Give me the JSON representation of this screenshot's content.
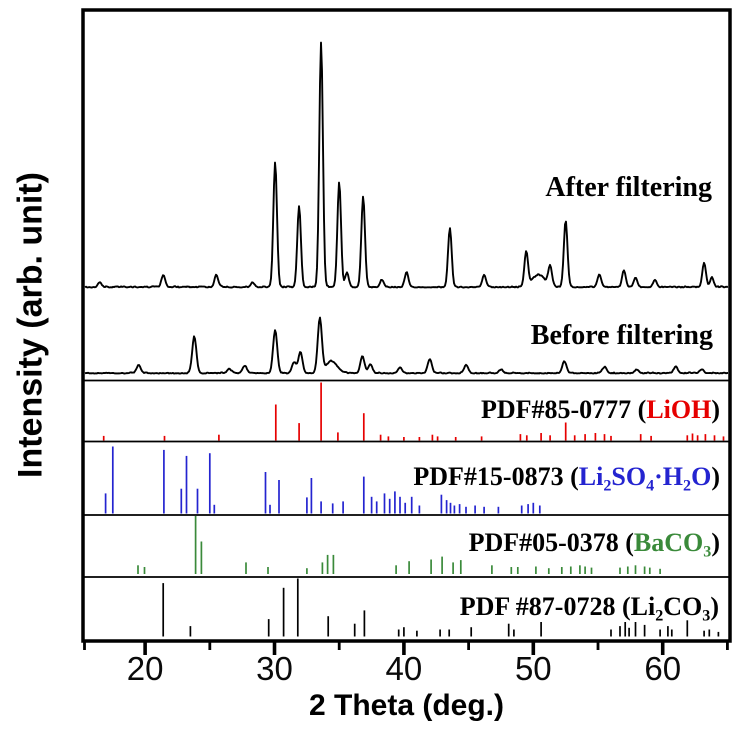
{
  "accent_colors": {
    "red": "#e60000",
    "blue": "#2424d0",
    "green": "#3a8a3a",
    "black": "#000000"
  },
  "chart_data": {
    "type": "line",
    "description": "Multi-panel powder XRD figure: two measured diffraction traces (after/before filtering) stacked above four reference stick patterns (LiOH, Li2SO4·H2O, BaCO3, Li2CO3). Peaks listed as [two_theta_deg, relative_intensity, optional_width_deg].",
    "xlabel": "2 Theta (deg.)",
    "ylabel": "Intensity (arb. unit)",
    "x_range": [
      15.2,
      65.2
    ],
    "x_major_ticks": [
      20,
      30,
      40,
      50,
      60
    ],
    "x_minor_ticks": [
      15,
      25,
      35,
      45,
      55,
      65
    ],
    "grid": false,
    "legend_position": "in-panel right-aligned labels",
    "panels": [
      {
        "id": "after",
        "kind": "trace",
        "color": "#000000",
        "label_parts": [
          {
            "t": "After filtering",
            "color": "#000000"
          }
        ],
        "peaks": [
          [
            16.5,
            0.02
          ],
          [
            21.4,
            0.05
          ],
          [
            25.5,
            0.05
          ],
          [
            28.3,
            0.02
          ],
          [
            30.05,
            0.51
          ],
          [
            31.9,
            0.33
          ],
          [
            33.6,
            1.0
          ],
          [
            35.0,
            0.43
          ],
          [
            35.6,
            0.06
          ],
          [
            36.85,
            0.37
          ],
          [
            38.3,
            0.03
          ],
          [
            40.2,
            0.06
          ],
          [
            43.55,
            0.24
          ],
          [
            46.2,
            0.05
          ],
          [
            49.45,
            0.14
          ],
          [
            50.4,
            0.05,
            0.5
          ],
          [
            51.3,
            0.08
          ],
          [
            52.5,
            0.27
          ],
          [
            55.1,
            0.05
          ],
          [
            57.0,
            0.07
          ],
          [
            57.9,
            0.04
          ],
          [
            59.4,
            0.03
          ],
          [
            63.2,
            0.1
          ],
          [
            63.8,
            0.04
          ]
        ]
      },
      {
        "id": "before",
        "kind": "trace",
        "color": "#000000",
        "label_parts": [
          {
            "t": "Before filtering",
            "color": "#000000"
          }
        ],
        "peaks": [
          [
            19.5,
            0.15
          ],
          [
            23.8,
            0.68
          ],
          [
            26.5,
            0.08
          ],
          [
            27.7,
            0.14
          ],
          [
            30.05,
            0.8
          ],
          [
            31.5,
            0.2
          ],
          [
            32.0,
            0.4
          ],
          [
            33.5,
            1.0
          ],
          [
            34.4,
            0.22,
            0.45
          ],
          [
            36.8,
            0.3
          ],
          [
            37.4,
            0.16
          ],
          [
            39.7,
            0.11
          ],
          [
            42.0,
            0.26
          ],
          [
            44.8,
            0.14
          ],
          [
            47.5,
            0.07
          ],
          [
            52.4,
            0.22
          ],
          [
            55.5,
            0.11
          ],
          [
            58.0,
            0.07
          ],
          [
            61.0,
            0.12
          ],
          [
            63.0,
            0.07
          ]
        ]
      },
      {
        "id": "lioh",
        "kind": "sticks",
        "color": "#e60000",
        "label_parts": [
          {
            "t": "PDF#85-0777 (",
            "color": "#000000"
          },
          {
            "t": "LiOH",
            "color": "#e60000"
          },
          {
            "t": ")",
            "color": "#000000"
          }
        ],
        "peaks": [
          [
            16.8,
            0.08
          ],
          [
            21.5,
            0.08
          ],
          [
            25.7,
            0.1
          ],
          [
            30.1,
            0.62
          ],
          [
            31.9,
            0.3
          ],
          [
            33.6,
            1.0
          ],
          [
            34.9,
            0.14
          ],
          [
            36.9,
            0.47
          ],
          [
            38.2,
            0.1
          ],
          [
            38.8,
            0.07
          ],
          [
            40.0,
            0.06
          ],
          [
            41.2,
            0.06
          ],
          [
            42.2,
            0.1
          ],
          [
            42.6,
            0.07
          ],
          [
            44.0,
            0.06
          ],
          [
            46.0,
            0.07
          ],
          [
            49.0,
            0.11
          ],
          [
            49.5,
            0.09
          ],
          [
            50.6,
            0.13
          ],
          [
            51.3,
            0.09
          ],
          [
            52.5,
            0.31
          ],
          [
            53.2,
            0.09
          ],
          [
            54.0,
            0.11
          ],
          [
            54.8,
            0.13
          ],
          [
            55.5,
            0.11
          ],
          [
            56.0,
            0.08
          ],
          [
            58.3,
            0.11
          ],
          [
            59.1,
            0.08
          ],
          [
            61.9,
            0.09
          ],
          [
            62.3,
            0.12
          ],
          [
            62.7,
            0.09
          ],
          [
            63.3,
            0.11
          ],
          [
            64.0,
            0.09
          ],
          [
            64.7,
            0.07
          ]
        ]
      },
      {
        "id": "li2so4",
        "kind": "sticks",
        "color": "#2424d0",
        "label_parts": [
          {
            "t": "PDF#15-0873 (",
            "color": "#000000"
          },
          {
            "t": "Li",
            "color": "#2424d0"
          },
          {
            "t": "2",
            "color": "#2424d0",
            "sub": true
          },
          {
            "t": "SO",
            "color": "#2424d0"
          },
          {
            "t": "4",
            "color": "#2424d0",
            "sub": true
          },
          {
            "t": "·H",
            "color": "#2424d0"
          },
          {
            "t": "2",
            "color": "#2424d0",
            "sub": true
          },
          {
            "t": "O",
            "color": "#2424d0"
          },
          {
            "t": ")",
            "color": "#000000"
          }
        ],
        "peaks": [
          [
            16.95,
            0.3
          ],
          [
            17.5,
            1.0
          ],
          [
            21.45,
            0.95
          ],
          [
            22.8,
            0.37
          ],
          [
            23.2,
            0.86
          ],
          [
            24.05,
            0.37
          ],
          [
            25.0,
            0.9
          ],
          [
            25.35,
            0.13
          ],
          [
            29.3,
            0.62
          ],
          [
            29.65,
            0.13
          ],
          [
            30.35,
            0.5
          ],
          [
            32.5,
            0.24
          ],
          [
            32.85,
            0.53
          ],
          [
            33.6,
            0.18
          ],
          [
            34.5,
            0.15
          ],
          [
            35.3,
            0.18
          ],
          [
            36.9,
            0.55
          ],
          [
            37.5,
            0.25
          ],
          [
            37.9,
            0.18
          ],
          [
            38.5,
            0.3
          ],
          [
            38.9,
            0.22
          ],
          [
            39.3,
            0.33
          ],
          [
            39.7,
            0.25
          ],
          [
            40.1,
            0.16
          ],
          [
            40.6,
            0.25
          ],
          [
            41.2,
            0.12
          ],
          [
            42.9,
            0.28
          ],
          [
            43.3,
            0.2
          ],
          [
            43.6,
            0.16
          ],
          [
            43.9,
            0.12
          ],
          [
            44.3,
            0.14
          ],
          [
            44.8,
            0.1
          ],
          [
            45.5,
            0.12
          ],
          [
            46.2,
            0.1
          ],
          [
            47.3,
            0.1
          ],
          [
            49.1,
            0.12
          ],
          [
            49.6,
            0.14
          ],
          [
            50.0,
            0.16
          ],
          [
            50.5,
            0.12
          ]
        ]
      },
      {
        "id": "baco3",
        "kind": "sticks",
        "color": "#3a8a3a",
        "label_parts": [
          {
            "t": "PDF#05-0378 (",
            "color": "#000000"
          },
          {
            "t": "BaCO",
            "color": "#3a8a3a"
          },
          {
            "t": "3",
            "color": "#3a8a3a",
            "sub": true
          },
          {
            "t": ")",
            "color": "#000000"
          }
        ],
        "peaks": [
          [
            19.45,
            0.15
          ],
          [
            19.95,
            0.12
          ],
          [
            23.9,
            1.0
          ],
          [
            24.35,
            0.56
          ],
          [
            27.8,
            0.2
          ],
          [
            29.5,
            0.12
          ],
          [
            32.5,
            0.1
          ],
          [
            33.7,
            0.2
          ],
          [
            34.1,
            0.33
          ],
          [
            34.55,
            0.33
          ],
          [
            39.4,
            0.15
          ],
          [
            40.4,
            0.22
          ],
          [
            42.1,
            0.25
          ],
          [
            42.95,
            0.3
          ],
          [
            43.8,
            0.2
          ],
          [
            44.4,
            0.24
          ],
          [
            46.8,
            0.15
          ],
          [
            48.3,
            0.12
          ],
          [
            48.8,
            0.12
          ],
          [
            50.2,
            0.13
          ],
          [
            51.2,
            0.1
          ],
          [
            52.2,
            0.12
          ],
          [
            52.9,
            0.13
          ],
          [
            53.6,
            0.15
          ],
          [
            54.0,
            0.13
          ],
          [
            54.5,
            0.11
          ],
          [
            56.7,
            0.11
          ],
          [
            57.3,
            0.13
          ],
          [
            57.9,
            0.15
          ],
          [
            58.6,
            0.13
          ],
          [
            59.0,
            0.11
          ],
          [
            59.8,
            0.09
          ]
        ]
      },
      {
        "id": "li2co3",
        "kind": "sticks",
        "color": "#000000",
        "label_parts": [
          {
            "t": "PDF #87-0728 (",
            "color": "#000000"
          },
          {
            "t": "Li",
            "color": "#000000"
          },
          {
            "t": "2",
            "color": "#000000",
            "sub": true
          },
          {
            "t": "CO",
            "color": "#000000"
          },
          {
            "t": "3",
            "color": "#000000",
            "sub": true
          },
          {
            "t": ")",
            "color": "#000000"
          }
        ],
        "peaks": [
          [
            21.4,
            0.92
          ],
          [
            23.5,
            0.18
          ],
          [
            29.55,
            0.3
          ],
          [
            30.7,
            0.84
          ],
          [
            31.8,
            1.0
          ],
          [
            34.15,
            0.35
          ],
          [
            36.2,
            0.22
          ],
          [
            36.95,
            0.45
          ],
          [
            39.6,
            0.12
          ],
          [
            40.0,
            0.16
          ],
          [
            41.0,
            0.1
          ],
          [
            42.8,
            0.12
          ],
          [
            43.5,
            0.12
          ],
          [
            45.2,
            0.16
          ],
          [
            48.1,
            0.22
          ],
          [
            48.5,
            0.12
          ],
          [
            50.6,
            0.25
          ],
          [
            56.0,
            0.12
          ],
          [
            56.7,
            0.18
          ],
          [
            57.1,
            0.25
          ],
          [
            57.4,
            0.15
          ],
          [
            57.9,
            0.25
          ],
          [
            58.6,
            0.2
          ],
          [
            59.8,
            0.12
          ],
          [
            60.4,
            0.18
          ],
          [
            60.7,
            0.12
          ],
          [
            61.9,
            0.28
          ],
          [
            63.2,
            0.1
          ],
          [
            63.6,
            0.12
          ],
          [
            64.3,
            0.08
          ]
        ]
      }
    ]
  }
}
